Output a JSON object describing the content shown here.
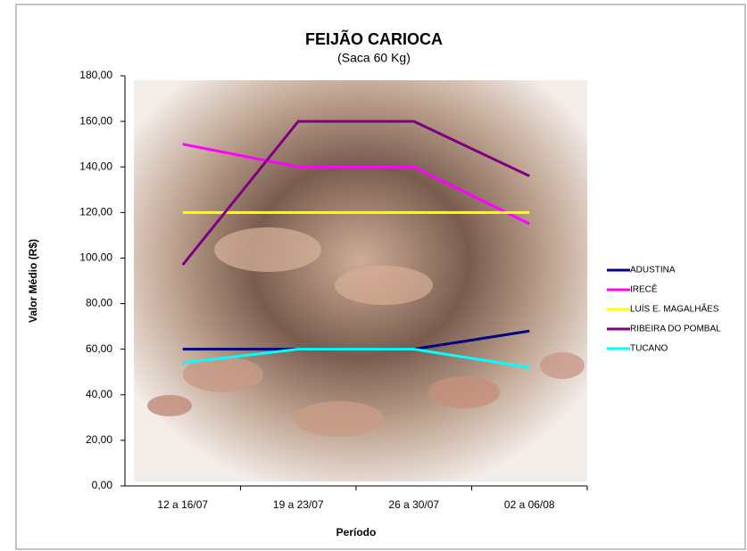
{
  "chart_data": {
    "type": "line",
    "title": "FEIJÃO CARIOCA",
    "subtitle": "(Saca 60 Kg)",
    "x_label": "Período",
    "y_label": "Valor Médio (R$)",
    "categories": [
      "12 a 16/07",
      "19 a 23/07",
      "26 a 30/07",
      "02 a 06/08"
    ],
    "series": [
      {
        "name": "ADUSTINA",
        "color": "#000080",
        "values": [
          60,
          60,
          60,
          68
        ]
      },
      {
        "name": "IRECÊ",
        "color": "#ff00ff",
        "values": [
          150,
          140,
          140,
          115
        ]
      },
      {
        "name": "LUÍS E. MAGALHÃES",
        "color": "#ffff00",
        "values": [
          120,
          120,
          120,
          120
        ]
      },
      {
        "name": "RIBEIRA DO POMBAL",
        "color": "#800080",
        "values": [
          97,
          160,
          160,
          136
        ]
      },
      {
        "name": "TUCANO",
        "color": "#00ffff",
        "values": [
          54,
          60,
          60,
          52
        ]
      }
    ],
    "ylim": [
      0,
      180
    ],
    "yticks": [
      {
        "value": 0,
        "label": "0,00"
      },
      {
        "value": 20,
        "label": "20,00"
      },
      {
        "value": 40,
        "label": "40,00"
      },
      {
        "value": 60,
        "label": "60,00"
      },
      {
        "value": 80,
        "label": "80,00"
      },
      {
        "value": 100,
        "label": "100,00"
      },
      {
        "value": 120,
        "label": "120,00"
      },
      {
        "value": 140,
        "label": "140,00"
      },
      {
        "value": 160,
        "label": "160,00"
      },
      {
        "value": 180,
        "label": "180,00"
      }
    ],
    "legend": "right"
  }
}
